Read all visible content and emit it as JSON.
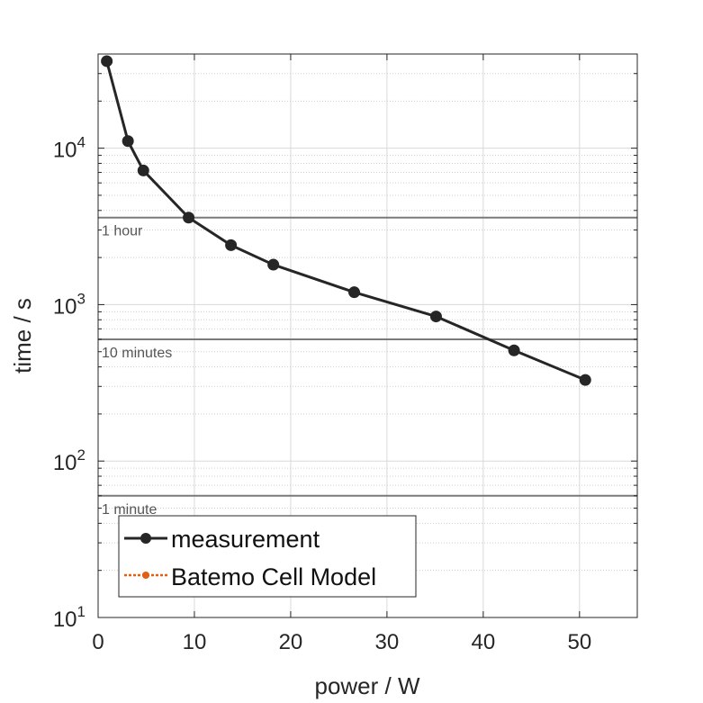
{
  "chart_data": {
    "type": "line",
    "xlabel": "power / W",
    "ylabel": "time / s",
    "xlim": [
      0,
      56
    ],
    "ylim": [
      10,
      40000
    ],
    "yscale": "log",
    "grid": true,
    "x_ticks": [
      "0",
      "10",
      "20",
      "30",
      "40",
      "50"
    ],
    "y_ticks": [
      {
        "base": "10",
        "exp": "1"
      },
      {
        "base": "10",
        "exp": "2"
      },
      {
        "base": "10",
        "exp": "3"
      },
      {
        "base": "10",
        "exp": "4"
      }
    ],
    "reference_lines": [
      {
        "label": "1 hour",
        "y": 3600
      },
      {
        "label": "10 minutes",
        "y": 600
      },
      {
        "label": "1 minute",
        "y": 60
      }
    ],
    "series": [
      {
        "name": "measurement",
        "color": "#262626",
        "x": [
          0.9,
          3.1,
          4.7,
          9.4,
          13.8,
          18.2,
          26.6,
          35.1,
          43.2,
          50.6
        ],
        "y": [
          36000,
          11100,
          7200,
          3600,
          2400,
          1800,
          1200,
          840,
          510,
          330
        ]
      },
      {
        "name": "Batemo Cell Model",
        "color": "#e35f13",
        "x": [],
        "y": []
      }
    ],
    "legend_position": "bottom-left"
  }
}
